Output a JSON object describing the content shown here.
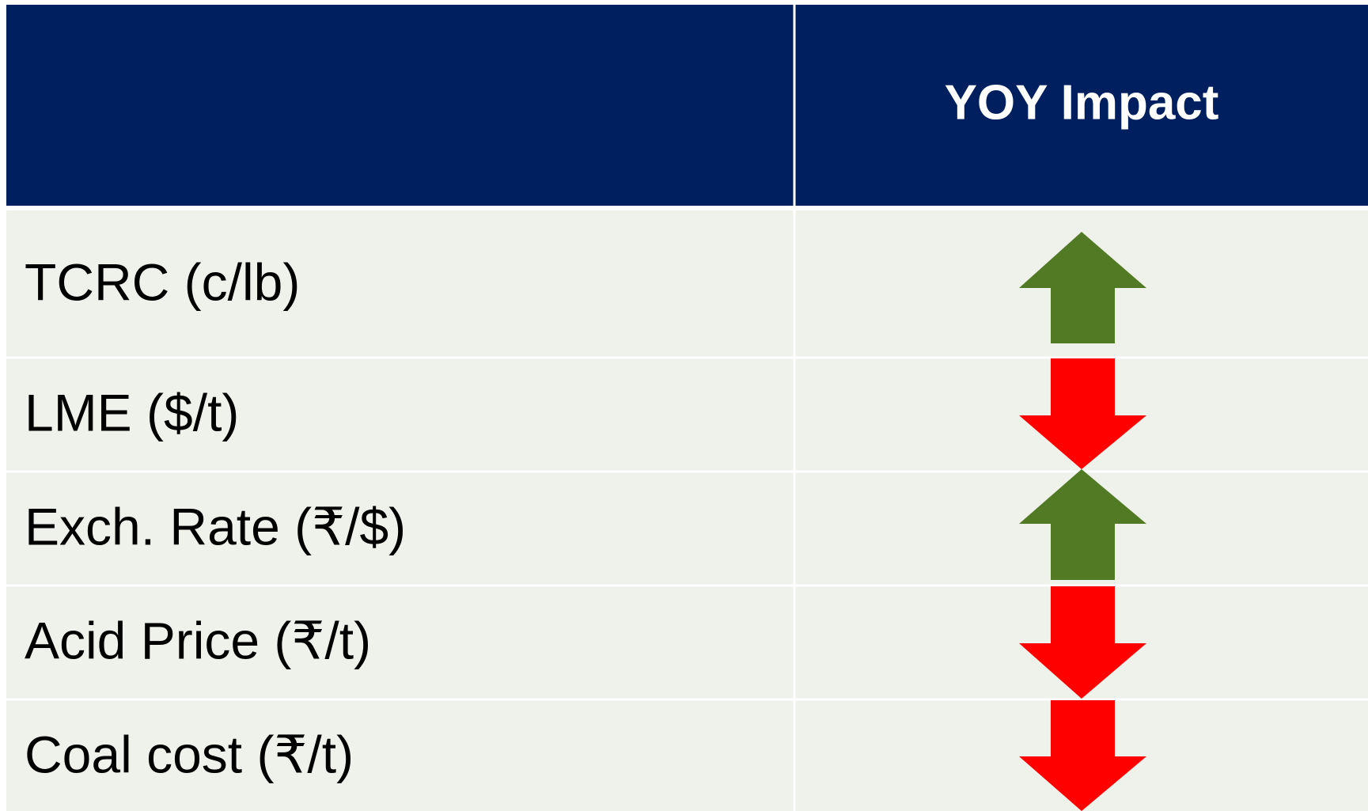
{
  "table": {
    "header": {
      "title": "YOY Impact"
    },
    "rows": [
      "TCRC (c/lb)",
      "LME ($/t)",
      "Exch. Rate (₹/$)",
      "Acid Price (₹/t)",
      "Coal cost (₹/t)"
    ]
  }
}
